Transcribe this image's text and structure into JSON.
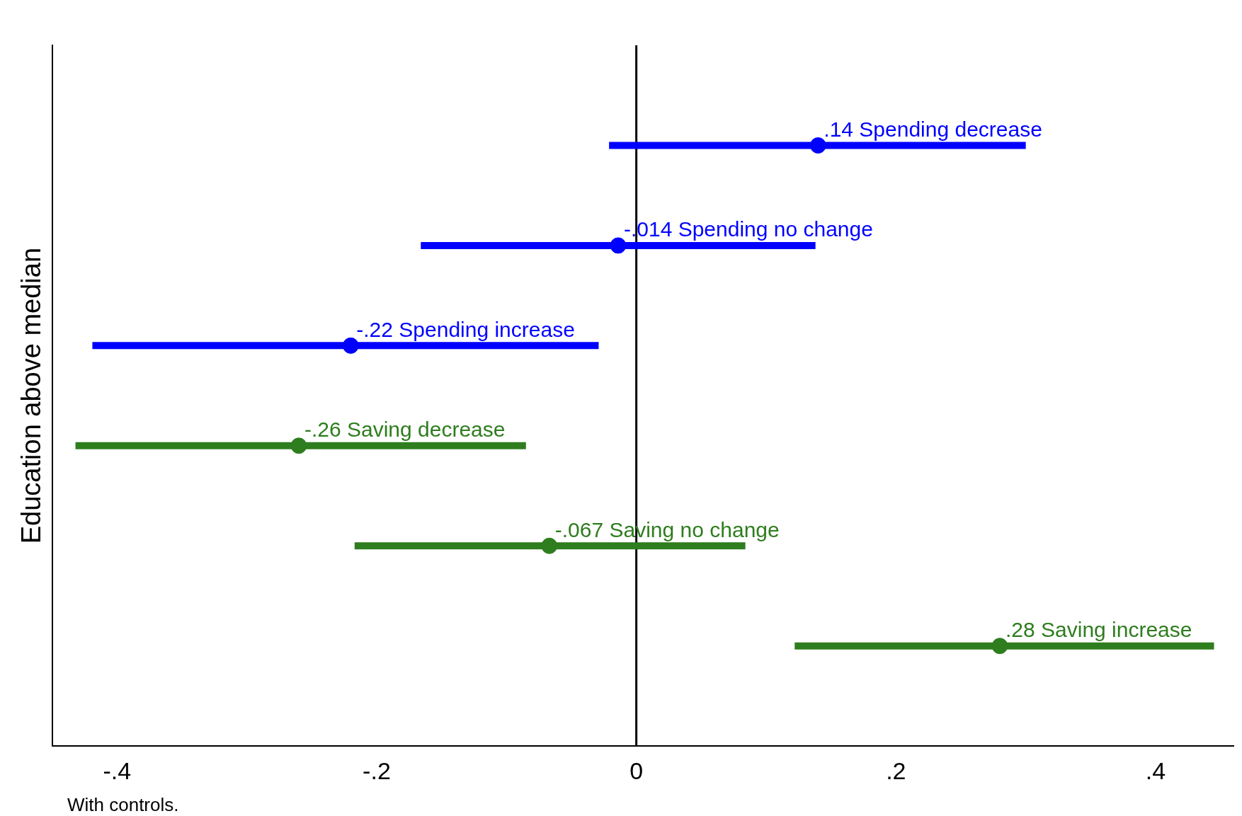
{
  "chart_data": {
    "type": "scatter",
    "orientation": "horizontal",
    "ylabel": "Education above median",
    "categories": [
      null,
      null,
      null,
      null,
      null,
      null
    ],
    "series": [
      {
        "color": "#0000ff",
        "values": [
          0.14,
          -0.014,
          -0.22,
          null,
          null,
          null
        ],
        "errors": [
          [
            -0.021,
            0.3
          ],
          [
            -0.166,
            0.138
          ],
          [
            -0.419,
            -0.029
          ],
          null,
          null,
          null
        ],
        "value_labels": [
          ".14 Spending decrease",
          "-.014 Spending no change",
          "-.22 Spending increase",
          null,
          null,
          null
        ]
      },
      {
        "color": "#2e7d1e",
        "values": [
          null,
          null,
          null,
          -0.26,
          -0.067,
          0.28
        ],
        "errors": [
          null,
          null,
          null,
          [
            -0.432,
            -0.085
          ],
          [
            -0.217,
            0.084
          ],
          [
            0.122,
            0.445
          ]
        ],
        "value_labels": [
          null,
          null,
          null,
          "-.26 Saving decrease",
          "-.067 Saving no change",
          ".28 Saving increase"
        ]
      }
    ],
    "xlim": [
      -0.45,
      0.46
    ],
    "xticks": [
      {
        "value": -0.4,
        "label": "-.4"
      },
      {
        "value": -0.2,
        "label": "-.2"
      },
      0,
      {
        "value": 0.2,
        "label": ".2"
      },
      {
        "value": 0.4,
        "label": ".4"
      }
    ],
    "ref_lines": [
      {
        "axis": "x",
        "value": 0,
        "color": "#000000"
      }
    ],
    "tick_labels": "x",
    "grid": false,
    "legend": false,
    "marker": "circle",
    "annotations": [
      "With controls."
    ]
  }
}
